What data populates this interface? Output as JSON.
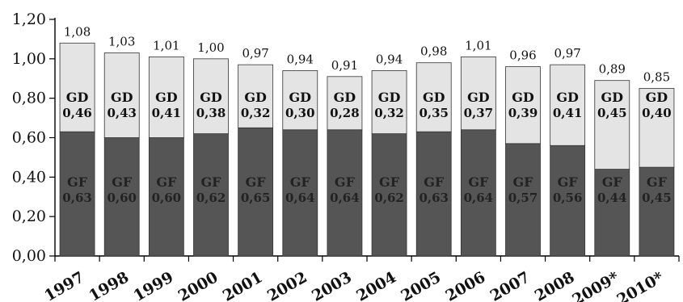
{
  "chart_data": {
    "type": "bar",
    "stacked": true,
    "categories": [
      "1997",
      "1998",
      "1999",
      "2000",
      "2001",
      "2002",
      "2003",
      "2004",
      "2005",
      "2006",
      "2007",
      "2008",
      "2009*",
      "2010*"
    ],
    "series": [
      {
        "name": "GF",
        "color": "#555555",
        "label_color": "#222222",
        "values": [
          0.63,
          0.6,
          0.6,
          0.62,
          0.65,
          0.64,
          0.64,
          0.62,
          0.63,
          0.64,
          0.57,
          0.56,
          0.44,
          0.45
        ],
        "labels": [
          "0,63",
          "0,60",
          "0,60",
          "0,62",
          "0,65",
          "0,64",
          "0,64",
          "0,62",
          "0,63",
          "0,64",
          "0,57",
          "0,56",
          "0,44",
          "0,45"
        ]
      },
      {
        "name": "GD",
        "color": "#e4e4e4",
        "label_color": "#111111",
        "values": [
          0.46,
          0.43,
          0.41,
          0.38,
          0.32,
          0.3,
          0.28,
          0.32,
          0.35,
          0.37,
          0.39,
          0.41,
          0.45,
          0.4
        ],
        "labels": [
          "0,46",
          "0,43",
          "0,41",
          "0,38",
          "0,32",
          "0,30",
          "0,28",
          "0,32",
          "0,35",
          "0,37",
          "0,39",
          "0,41",
          "0,45",
          "0,40"
        ]
      }
    ],
    "totals": [
      1.08,
      1.03,
      1.01,
      1.0,
      0.97,
      0.94,
      0.91,
      0.94,
      0.98,
      1.01,
      0.96,
      0.97,
      0.89,
      0.85
    ],
    "total_labels": [
      "1,08",
      "1,03",
      "1,01",
      "1,00",
      "0,97",
      "0,94",
      "0,91",
      "0,94",
      "0,98",
      "1,01",
      "0,96",
      "0,97",
      "0,89",
      "0,85"
    ],
    "ylim": [
      0,
      1.2
    ],
    "yticks": [
      0,
      0.2,
      0.4,
      0.6,
      0.8,
      1.0,
      1.2
    ],
    "ytick_labels": [
      "0,00",
      "0,20",
      "0,40",
      "0,60",
      "0,80",
      "1,00",
      "1,20"
    ],
    "title": "",
    "xlabel": "",
    "ylabel": "",
    "grid": false,
    "legend": "none"
  }
}
